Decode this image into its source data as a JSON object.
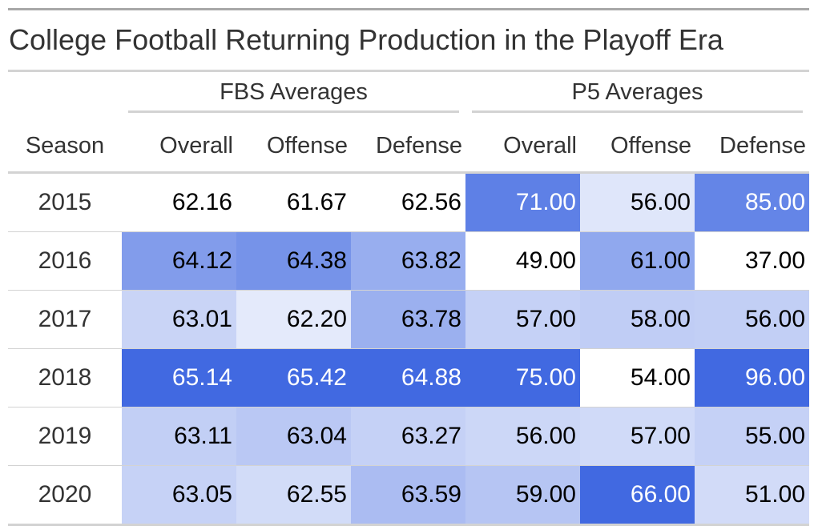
{
  "title": "College Football Returning Production in the Playoff Era",
  "spanners": [
    "FBS Averages",
    "P5 Averages"
  ],
  "columns": [
    "Season",
    "Overall",
    "Offense",
    "Defense",
    "Overall",
    "Offense",
    "Defense"
  ],
  "rows": [
    {
      "season": "2015",
      "values": [
        "62.16",
        "61.67",
        "62.56",
        "71.00",
        "56.00",
        "85.00"
      ]
    },
    {
      "season": "2016",
      "values": [
        "64.12",
        "64.38",
        "63.82",
        "49.00",
        "61.00",
        "37.00"
      ]
    },
    {
      "season": "2017",
      "values": [
        "63.01",
        "62.20",
        "63.78",
        "57.00",
        "58.00",
        "56.00"
      ]
    },
    {
      "season": "2018",
      "values": [
        "65.14",
        "65.42",
        "64.88",
        "75.00",
        "54.00",
        "96.00"
      ]
    },
    {
      "season": "2019",
      "values": [
        "63.11",
        "63.04",
        "63.27",
        "56.00",
        "57.00",
        "55.00"
      ]
    },
    {
      "season": "2020",
      "values": [
        "63.05",
        "62.55",
        "63.59",
        "59.00",
        "66.00",
        "51.00"
      ]
    }
  ],
  "colors": {
    "heat_low": "#ffffff",
    "heat_high": "#4169e1",
    "text_dark": "#000000",
    "text_light": "#ffffff"
  },
  "chart_data": {
    "type": "table",
    "title": "College Football Returning Production in the Playoff Era",
    "column_groups": [
      {
        "label": "FBS Averages",
        "columns": [
          "Overall",
          "Offense",
          "Defense"
        ]
      },
      {
        "label": "P5 Averages",
        "columns": [
          "Overall",
          "Offense",
          "Defense"
        ]
      }
    ],
    "categories": [
      "2015",
      "2016",
      "2017",
      "2018",
      "2019",
      "2020"
    ],
    "series": [
      {
        "name": "FBS Overall",
        "values": [
          62.16,
          64.12,
          63.01,
          65.14,
          63.11,
          63.05
        ]
      },
      {
        "name": "FBS Offense",
        "values": [
          61.67,
          64.38,
          62.2,
          65.42,
          63.04,
          62.55
        ]
      },
      {
        "name": "FBS Defense",
        "values": [
          62.56,
          63.82,
          63.78,
          64.88,
          63.27,
          63.59
        ]
      },
      {
        "name": "P5 Overall",
        "values": [
          71.0,
          49.0,
          57.0,
          75.0,
          56.0,
          59.0
        ]
      },
      {
        "name": "P5 Offense",
        "values": [
          56.0,
          61.0,
          58.0,
          54.0,
          57.0,
          66.0
        ]
      },
      {
        "name": "P5 Defense",
        "values": [
          85.0,
          37.0,
          56.0,
          96.0,
          55.0,
          51.0
        ]
      }
    ],
    "color_scale": "per-column, white (min) to royal blue (max)"
  }
}
